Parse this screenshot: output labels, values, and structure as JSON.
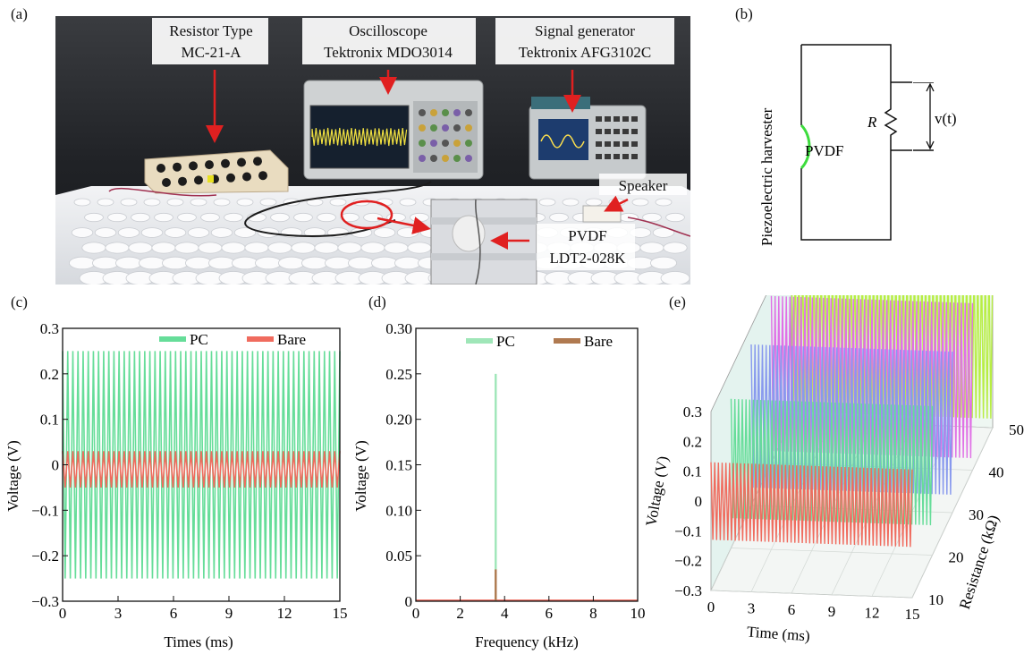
{
  "panels": {
    "a": "(a)",
    "b": "(b)",
    "c": "(c)",
    "d": "(d)",
    "e": "(e)"
  },
  "photo": {
    "resistor_line1": "Resistor Type",
    "resistor_line2": "MC-21-A",
    "scope_line1": "Oscilloscope",
    "scope_line2": "Tektronix MDO3014",
    "siggen_line1": "Signal generator",
    "siggen_line2": "Tektronix AFG3102C",
    "speaker": "Speaker",
    "pvdf_line1": "PVDF",
    "pvdf_line2": "LDT2-028K",
    "colors": {
      "arrow": "#e02020",
      "table": "#e9ecef",
      "backdrop": "#2d2f33"
    }
  },
  "circuit": {
    "harvester_label": "Piezoelectric harvester",
    "pvdf_label": "PVDF",
    "resistor_label": "R",
    "voltage_label": "v(t)",
    "colors": {
      "pvdf_arc": "#3ddc3d"
    }
  },
  "chart_data": [
    {
      "id": "c",
      "type": "line",
      "xlabel": "Times (ms)",
      "ylabel": "Voltage (V)",
      "xlim": [
        0,
        15
      ],
      "ylim": [
        -0.3,
        0.3
      ],
      "xticks": [
        0,
        3,
        6,
        9,
        12,
        15
      ],
      "yticks": [
        -0.3,
        -0.2,
        -0.1,
        0,
        0.1,
        0.2,
        0.3
      ],
      "ytick_labels": [
        "−0.3",
        "−0.2",
        "−0.1",
        "0",
        "0.1",
        "0.2",
        "0.3"
      ],
      "legend": {
        "position": "top-right",
        "entries": [
          "PC",
          "Bare"
        ]
      },
      "series": [
        {
          "name": "PC",
          "color": "#66dd99",
          "amplitude_max": 0.25,
          "amplitude_min": -0.25,
          "frequency_khz": 3.6
        },
        {
          "name": "Bare",
          "color": "#f06b5e",
          "amplitude_max": 0.03,
          "amplitude_min": -0.05,
          "frequency_khz": 3.6
        }
      ]
    },
    {
      "id": "d",
      "type": "line",
      "xlabel": "Frequency (kHz)",
      "ylabel": "Voltage (V)",
      "xlim": [
        0,
        10
      ],
      "ylim": [
        0,
        0.3
      ],
      "xticks": [
        0,
        2,
        4,
        6,
        8,
        10
      ],
      "yticks": [
        0,
        0.05,
        0.1,
        0.15,
        0.2,
        0.25,
        0.3
      ],
      "ytick_labels": [
        "0",
        "0.05",
        "0.10",
        "0.15",
        "0.20",
        "0.25",
        "0.30"
      ],
      "legend": {
        "position": "top-right",
        "entries": [
          "PC",
          "Bare"
        ]
      },
      "series": [
        {
          "name": "PC",
          "color": "#9fe6b8",
          "peak_frequency_khz": 3.6,
          "peak_value": 0.25
        },
        {
          "name": "Bare",
          "color": "#b07a50",
          "peak_frequency_khz": 3.6,
          "peak_value": 0.035
        }
      ]
    },
    {
      "id": "e",
      "type": "line",
      "xlabel": "Time (ms)",
      "ylabel": "Voltage (V)",
      "zlabel": "Resistance (kΩ)",
      "xlim": [
        0,
        15
      ],
      "ylim": [
        -0.3,
        0.3
      ],
      "zlim": [
        10,
        50
      ],
      "xticks": [
        0,
        3,
        6,
        9,
        12,
        15
      ],
      "yticks": [
        -0.3,
        -0.2,
        -0.1,
        0,
        0.1,
        0.2,
        0.3
      ],
      "ytick_labels": [
        "−0.3",
        "−0.2",
        "−0.1",
        "0",
        "0.1",
        "0.2",
        "0.3"
      ],
      "zticks": [
        10,
        20,
        30,
        40,
        50
      ],
      "series": [
        {
          "name": "10 kΩ",
          "resistance": 10,
          "color": "#f06b5e",
          "amplitude": 0.13
        },
        {
          "name": "20 kΩ",
          "resistance": 20,
          "color": "#66dd99",
          "amplitude": 0.2
        },
        {
          "name": "30 kΩ",
          "resistance": 30,
          "color": "#8899ee",
          "amplitude": 0.24
        },
        {
          "name": "40 kΩ",
          "resistance": 40,
          "color": "#e070e6",
          "amplitude": 0.26
        },
        {
          "name": "50 kΩ",
          "resistance": 50,
          "color": "#b8ee44",
          "amplitude": 0.27
        }
      ]
    }
  ]
}
